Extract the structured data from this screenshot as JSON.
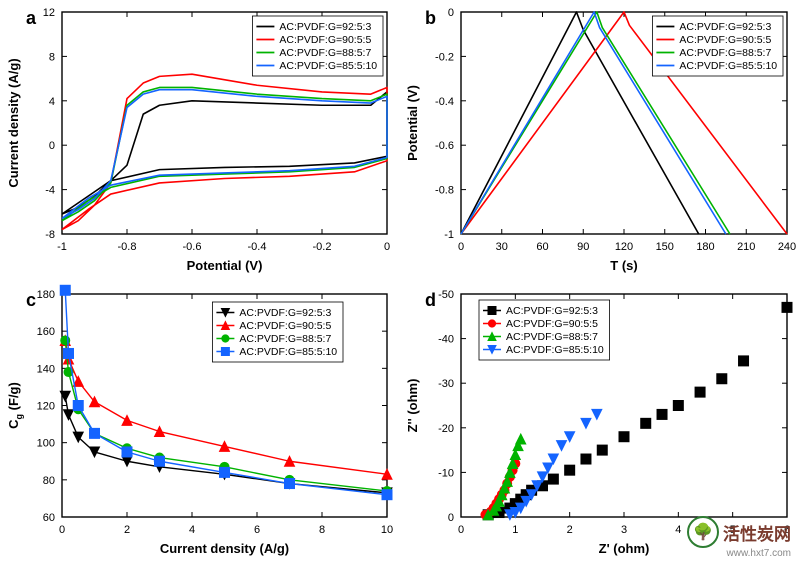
{
  "series_labels": [
    "AC:PVDF:G=92:5:3",
    "AC:PVDF:G=90:5:5",
    "AC:PVDF:G=88:5:7",
    "AC:PVDF:G=85:5:10"
  ],
  "palette": {
    "s1": "#000000",
    "s2": "#ff0000",
    "s3": "#00b300",
    "s4": "#1464ff",
    "axis": "#000000",
    "grid": "#e0e0e0",
    "bg": "#ffffff"
  },
  "chart_a": {
    "type": "line",
    "letter": "a",
    "xlabel": "Potential (V)",
    "ylabel": "Current density (A/g)",
    "xlim": [
      -1.0,
      0.0
    ],
    "ylim": [
      -8,
      12
    ],
    "xticks": [
      -1.0,
      -0.8,
      -0.6,
      -0.4,
      -0.2,
      0.0
    ],
    "yticks": [
      -8,
      -4,
      0,
      4,
      8,
      12
    ],
    "label_fontsize": 13,
    "tick_fontsize": 11,
    "letter_fontsize": 18,
    "line_width": 1.6,
    "legend_pos": "top-right",
    "series": {
      "s1": [
        [
          -1,
          -6.2
        ],
        [
          -0.95,
          -5.6
        ],
        [
          -0.9,
          -4.6
        ],
        [
          -0.85,
          -3.2
        ],
        [
          -0.8,
          -1.8
        ],
        [
          -0.75,
          2.8
        ],
        [
          -0.7,
          3.6
        ],
        [
          -0.6,
          4.0
        ],
        [
          -0.4,
          3.8
        ],
        [
          -0.2,
          3.6
        ],
        [
          -0.05,
          3.6
        ],
        [
          0,
          4.8
        ],
        [
          0,
          -1.0
        ],
        [
          -0.1,
          -1.6
        ],
        [
          -0.3,
          -1.9
        ],
        [
          -0.5,
          -2.0
        ],
        [
          -0.7,
          -2.2
        ],
        [
          -0.85,
          -3.2
        ],
        [
          -0.92,
          -4.6
        ],
        [
          -1,
          -6.2
        ]
      ],
      "s2": [
        [
          -1,
          -7.6
        ],
        [
          -0.95,
          -6.8
        ],
        [
          -0.9,
          -5.4
        ],
        [
          -0.85,
          -3.4
        ],
        [
          -0.8,
          4.2
        ],
        [
          -0.75,
          5.6
        ],
        [
          -0.7,
          6.2
        ],
        [
          -0.6,
          6.4
        ],
        [
          -0.4,
          5.4
        ],
        [
          -0.2,
          4.8
        ],
        [
          -0.05,
          4.6
        ],
        [
          0,
          5.2
        ],
        [
          0,
          -1.4
        ],
        [
          -0.1,
          -2.4
        ],
        [
          -0.3,
          -2.8
        ],
        [
          -0.5,
          -3.0
        ],
        [
          -0.7,
          -3.4
        ],
        [
          -0.85,
          -4.4
        ],
        [
          -0.92,
          -5.8
        ],
        [
          -1,
          -7.6
        ]
      ],
      "s3": [
        [
          -1,
          -6.8
        ],
        [
          -0.95,
          -6.0
        ],
        [
          -0.9,
          -5.0
        ],
        [
          -0.85,
          -3.4
        ],
        [
          -0.8,
          3.6
        ],
        [
          -0.75,
          4.8
        ],
        [
          -0.7,
          5.2
        ],
        [
          -0.6,
          5.2
        ],
        [
          -0.4,
          4.6
        ],
        [
          -0.2,
          4.2
        ],
        [
          -0.05,
          4.0
        ],
        [
          0,
          4.6
        ],
        [
          0,
          -1.2
        ],
        [
          -0.1,
          -2.0
        ],
        [
          -0.3,
          -2.4
        ],
        [
          -0.5,
          -2.6
        ],
        [
          -0.7,
          -2.8
        ],
        [
          -0.85,
          -3.8
        ],
        [
          -0.92,
          -5.0
        ],
        [
          -1,
          -6.8
        ]
      ],
      "s4": [
        [
          -1,
          -6.6
        ],
        [
          -0.95,
          -5.8
        ],
        [
          -0.9,
          -4.8
        ],
        [
          -0.85,
          -3.2
        ],
        [
          -0.8,
          3.4
        ],
        [
          -0.75,
          4.6
        ],
        [
          -0.7,
          5.0
        ],
        [
          -0.6,
          5.0
        ],
        [
          -0.4,
          4.4
        ],
        [
          -0.2,
          4.0
        ],
        [
          -0.05,
          3.8
        ],
        [
          0,
          4.4
        ],
        [
          0,
          -1.1
        ],
        [
          -0.1,
          -1.9
        ],
        [
          -0.3,
          -2.3
        ],
        [
          -0.5,
          -2.5
        ],
        [
          -0.7,
          -2.7
        ],
        [
          -0.85,
          -3.6
        ],
        [
          -0.92,
          -4.8
        ],
        [
          -1,
          -6.6
        ]
      ]
    }
  },
  "chart_b": {
    "type": "line",
    "letter": "b",
    "xlabel": "T (s)",
    "ylabel": "Potential (V)",
    "xlim": [
      0,
      240
    ],
    "ylim": [
      -1.0,
      0.0
    ],
    "xticks": [
      0,
      30,
      60,
      90,
      120,
      150,
      180,
      210,
      240
    ],
    "yticks": [
      -1.0,
      -0.8,
      -0.6,
      -0.4,
      -0.2,
      0.0
    ],
    "label_fontsize": 13,
    "tick_fontsize": 11,
    "letter_fontsize": 18,
    "line_width": 1.6,
    "legend_pos": "top-right",
    "series": {
      "s1": [
        [
          0,
          -1.0
        ],
        [
          85,
          0.0
        ],
        [
          90,
          -0.08
        ],
        [
          175,
          -1.0
        ]
      ],
      "s2": [
        [
          0,
          -1.0
        ],
        [
          120,
          0.0
        ],
        [
          124,
          -0.06
        ],
        [
          240,
          -1.0
        ]
      ],
      "s3": [
        [
          0,
          -1.0
        ],
        [
          100,
          0.0
        ],
        [
          104,
          -0.07
        ],
        [
          198,
          -1.0
        ]
      ],
      "s4": [
        [
          0,
          -1.0
        ],
        [
          98,
          0.0
        ],
        [
          102,
          -0.07
        ],
        [
          195,
          -1.0
        ]
      ]
    }
  },
  "chart_c": {
    "type": "scatter-line",
    "letter": "c",
    "xlabel": "Current density (A/g)",
    "ylabel": "C_g (F/g)",
    "ylabel_is_subscript": true,
    "xlim": [
      0,
      10
    ],
    "ylim": [
      60,
      180
    ],
    "xticks": [
      0,
      2,
      4,
      6,
      8,
      10
    ],
    "yticks": [
      60,
      80,
      100,
      120,
      140,
      160,
      180
    ],
    "label_fontsize": 13,
    "tick_fontsize": 11,
    "letter_fontsize": 18,
    "line_width": 1.4,
    "marker_size": 5,
    "legend_pos": "top-right",
    "markers": {
      "s1": "tri-down",
      "s2": "tri-up",
      "s3": "circle",
      "s4": "square"
    },
    "series": {
      "s1": [
        [
          0.1,
          125
        ],
        [
          0.2,
          115
        ],
        [
          0.5,
          103
        ],
        [
          1,
          95
        ],
        [
          2,
          90
        ],
        [
          3,
          87
        ],
        [
          5,
          83
        ],
        [
          7,
          78
        ],
        [
          10,
          73
        ]
      ],
      "s2": [
        [
          0.1,
          155
        ],
        [
          0.2,
          145
        ],
        [
          0.5,
          133
        ],
        [
          1,
          122
        ],
        [
          2,
          112
        ],
        [
          3,
          106
        ],
        [
          5,
          98
        ],
        [
          7,
          90
        ],
        [
          10,
          83
        ]
      ],
      "s3": [
        [
          0.1,
          155
        ],
        [
          0.2,
          138
        ],
        [
          0.5,
          118
        ],
        [
          1,
          105
        ],
        [
          2,
          97
        ],
        [
          3,
          92
        ],
        [
          5,
          87
        ],
        [
          7,
          80
        ],
        [
          10,
          74
        ]
      ],
      "s4": [
        [
          0.1,
          182
        ],
        [
          0.2,
          148
        ],
        [
          0.5,
          120
        ],
        [
          1,
          105
        ],
        [
          2,
          95
        ],
        [
          3,
          90
        ],
        [
          5,
          84
        ],
        [
          7,
          78
        ],
        [
          10,
          72
        ]
      ]
    }
  },
  "chart_d": {
    "type": "scatter",
    "letter": "d",
    "xlabel": "Z' (ohm)",
    "ylabel": "Z'' (ohm)",
    "xlim": [
      0,
      6
    ],
    "ylim": [
      0,
      -50
    ],
    "xticks": [
      0,
      1,
      2,
      3,
      4,
      5,
      6
    ],
    "yticks": [
      0,
      -10,
      -20,
      -30,
      -40,
      -50
    ],
    "label_fontsize": 13,
    "tick_fontsize": 11,
    "letter_fontsize": 18,
    "marker_size": 5,
    "legend_pos": "top-left",
    "markers": {
      "s1": "square",
      "s2": "circle",
      "s3": "tri-up",
      "s4": "tri-down"
    },
    "series": {
      "s1": [
        [
          0.5,
          -0.5
        ],
        [
          0.7,
          -1
        ],
        [
          0.9,
          -2
        ],
        [
          1.0,
          -3
        ],
        [
          1.1,
          -4
        ],
        [
          1.2,
          -5
        ],
        [
          1.3,
          -6
        ],
        [
          1.5,
          -7
        ],
        [
          1.7,
          -8.5
        ],
        [
          2.0,
          -10.5
        ],
        [
          2.3,
          -13
        ],
        [
          2.6,
          -15
        ],
        [
          3.0,
          -18
        ],
        [
          3.4,
          -21
        ],
        [
          3.7,
          -23
        ],
        [
          4.0,
          -25
        ],
        [
          4.4,
          -28
        ],
        [
          4.8,
          -31
        ],
        [
          5.2,
          -35
        ],
        [
          6.0,
          -47
        ]
      ],
      "s2": [
        [
          0.45,
          -0.5
        ],
        [
          0.55,
          -1.2
        ],
        [
          0.6,
          -2
        ],
        [
          0.65,
          -3
        ],
        [
          0.7,
          -4
        ],
        [
          0.75,
          -5
        ],
        [
          0.8,
          -6
        ],
        [
          0.85,
          -7.5
        ],
        [
          0.9,
          -9
        ],
        [
          0.95,
          -10.5
        ],
        [
          1.0,
          -12
        ]
      ],
      "s3": [
        [
          0.5,
          -0.5
        ],
        [
          0.6,
          -1.5
        ],
        [
          0.65,
          -2.5
        ],
        [
          0.7,
          -3.5
        ],
        [
          0.75,
          -5
        ],
        [
          0.8,
          -6.5
        ],
        [
          0.85,
          -8
        ],
        [
          0.9,
          -10
        ],
        [
          0.95,
          -12
        ],
        [
          1.0,
          -14
        ],
        [
          1.05,
          -16
        ],
        [
          1.1,
          -17.5
        ]
      ],
      "s4": [
        [
          0.9,
          -0.5
        ],
        [
          1.0,
          -1
        ],
        [
          1.1,
          -2
        ],
        [
          1.2,
          -3.5
        ],
        [
          1.3,
          -5
        ],
        [
          1.4,
          -7
        ],
        [
          1.5,
          -9
        ],
        [
          1.6,
          -11
        ],
        [
          1.7,
          -13
        ],
        [
          1.85,
          -16
        ],
        [
          2.0,
          -18
        ],
        [
          2.3,
          -21
        ],
        [
          2.5,
          -23
        ]
      ]
    }
  },
  "watermark": {
    "text_cn": "活性炭网",
    "url": "www.hxt7.com",
    "icon": "🌳"
  }
}
